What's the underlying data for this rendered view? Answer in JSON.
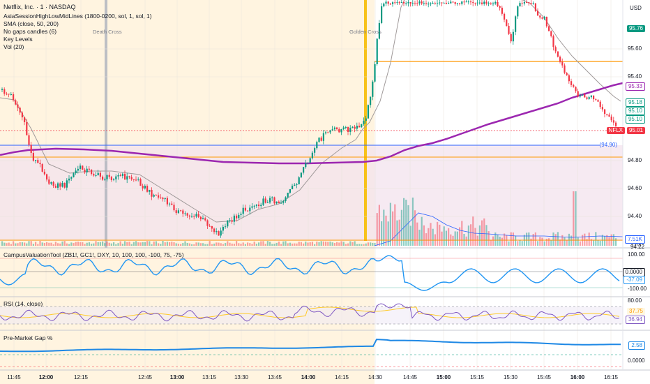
{
  "legend": {
    "title": "Netflix, Inc. · 1 · NASDAQ",
    "lines": [
      "AsiaSessionHighLowMidLines (1800-0200, sol, 1, sol, 1)",
      "SMA (close, 50, 200)",
      "No gaps candles (6)",
      "Key Levels",
      "Vol (20)"
    ]
  },
  "annotations": {
    "death_cross": "Death Cross",
    "golden_cross": "Golden Cross"
  },
  "currency": "USD",
  "price_axis": [
    "95.60",
    "95.40",
    "94.80",
    "94.60",
    "94.40"
  ],
  "price_tags": [
    {
      "text": "95.76",
      "color": "#089981",
      "style": "fill"
    },
    {
      "text": "95.33",
      "color": "#9c27b0",
      "style": "outline"
    },
    {
      "text": "95.18",
      "color": "#089981",
      "style": "outline"
    },
    {
      "text": "95.10",
      "color": "#089981",
      "style": "outline"
    },
    {
      "text": "95.10",
      "color": "#089981",
      "style": "outline"
    },
    {
      "text": "NFLX",
      "color": "#f23645",
      "style": "fill"
    },
    {
      "text": "95.01",
      "color": "#f23645",
      "style": "fill"
    },
    {
      "text": "(94.90)",
      "color": "#2962ff",
      "style": "text"
    },
    {
      "text": "7.51K",
      "color": "#2962ff",
      "style": "outline"
    },
    {
      "text": "Low",
      "color": "#787b86",
      "style": "text"
    },
    {
      "text": "94.22",
      "color": "#131722",
      "style": "text"
    }
  ],
  "panes": {
    "campus": {
      "title": "CampusValuationTool (ZB1!, GC1!, DXY, 10, 100, 100, -100, 75, -75)",
      "axis": [
        "100.00",
        "0.0000",
        "-37.09",
        "-100.00"
      ]
    },
    "rsi": {
      "title": "RSI (14, close)",
      "axis": [
        "80.00",
        "37.75",
        "36.94"
      ]
    },
    "gap": {
      "title": "Pre-Market Gap %",
      "axis": [
        "2.58",
        "0.0000"
      ]
    }
  },
  "time_axis": [
    {
      "label": "11:45",
      "bold": false
    },
    {
      "label": "12:00",
      "bold": true
    },
    {
      "label": "12:15",
      "bold": false
    },
    {
      "label": "12:45",
      "bold": false
    },
    {
      "label": "13:00",
      "bold": true
    },
    {
      "label": "13:15",
      "bold": false
    },
    {
      "label": "13:30",
      "bold": false
    },
    {
      "label": "13:45",
      "bold": false
    },
    {
      "label": "14:00",
      "bold": true
    },
    {
      "label": "14:15",
      "bold": false
    },
    {
      "label": "14:30",
      "bold": false
    },
    {
      "label": "14:45",
      "bold": false
    },
    {
      "label": "15:00",
      "bold": true
    },
    {
      "label": "15:15",
      "bold": false
    },
    {
      "label": "15:30",
      "bold": false
    },
    {
      "label": "15:45",
      "bold": false
    },
    {
      "label": "16:00",
      "bold": true
    },
    {
      "label": "16:15",
      "bold": false
    }
  ],
  "colors": {
    "up": "#089981",
    "down": "#f23645",
    "sma50": "#a09a9a",
    "sma200": "#9c27b0",
    "key_blue": "#2962ff",
    "key_orange": "#ff9800",
    "premarket_bg": "#fff4e0",
    "pink_zone": "#f3e3ee",
    "indicator_line": "#2196f3"
  }
}
